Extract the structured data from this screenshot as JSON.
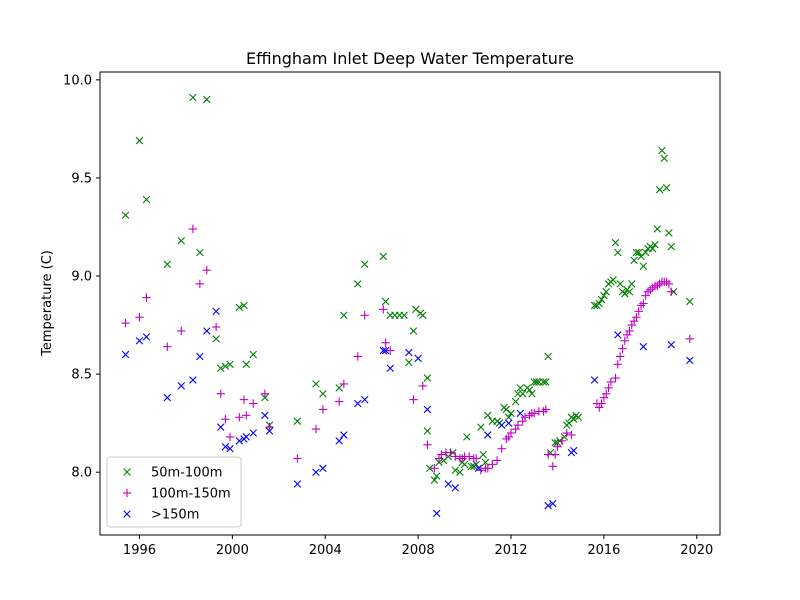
{
  "chart_data": {
    "type": "scatter",
    "title": "Effingham Inlet Deep Water Temperature",
    "xlabel": "",
    "ylabel": "Temperature (C)",
    "xlim": [
      1994.3,
      2021.0
    ],
    "ylim": [
      7.68,
      10.04
    ],
    "x_ticks": [
      1996,
      2000,
      2004,
      2008,
      2012,
      2016,
      2020
    ],
    "y_ticks": [
      8.0,
      8.5,
      9.0,
      9.5,
      10.0
    ],
    "x_tick_labels": [
      "1996",
      "2000",
      "2004",
      "2008",
      "2012",
      "2016",
      "2020"
    ],
    "y_tick_labels": [
      "8.0",
      "8.5",
      "9.0",
      "9.5",
      "10.0"
    ],
    "grid": false,
    "legend_position": "lower-left",
    "series": [
      {
        "name": "50m-100m",
        "marker": "x",
        "color": "#008000",
        "points": [
          [
            1995.4,
            9.31
          ],
          [
            1996.0,
            9.69
          ],
          [
            1996.3,
            9.39
          ],
          [
            1997.2,
            9.06
          ],
          [
            1997.8,
            9.18
          ],
          [
            1998.3,
            9.91
          ],
          [
            1998.6,
            9.12
          ],
          [
            1998.9,
            9.9
          ],
          [
            1999.3,
            8.68
          ],
          [
            1999.5,
            8.53
          ],
          [
            1999.7,
            8.54
          ],
          [
            1999.9,
            8.55
          ],
          [
            2000.3,
            8.84
          ],
          [
            2000.5,
            8.85
          ],
          [
            2000.6,
            8.55
          ],
          [
            2000.9,
            8.6
          ],
          [
            2001.4,
            8.38
          ],
          [
            2001.6,
            8.24
          ],
          [
            2002.8,
            8.26
          ],
          [
            2003.6,
            8.45
          ],
          [
            2003.9,
            8.4
          ],
          [
            2004.6,
            8.43
          ],
          [
            2004.8,
            8.8
          ],
          [
            2005.4,
            8.96
          ],
          [
            2005.7,
            9.06
          ],
          [
            2006.5,
            9.1
          ],
          [
            2006.6,
            8.87
          ],
          [
            2006.8,
            8.8
          ],
          [
            2007.0,
            8.8
          ],
          [
            2007.2,
            8.8
          ],
          [
            2007.4,
            8.8
          ],
          [
            2007.6,
            8.56
          ],
          [
            2007.8,
            8.72
          ],
          [
            2007.9,
            8.83
          ],
          [
            2008.1,
            8.81
          ],
          [
            2008.2,
            8.8
          ],
          [
            2008.4,
            8.48
          ],
          [
            2008.4,
            8.21
          ],
          [
            2008.5,
            8.02
          ],
          [
            2008.7,
            7.96
          ],
          [
            2008.8,
            7.98
          ],
          [
            2008.9,
            8.05
          ],
          [
            2009.1,
            8.06
          ],
          [
            2009.3,
            8.08
          ],
          [
            2009.5,
            8.1
          ],
          [
            2009.6,
            8.01
          ],
          [
            2009.8,
            8.0
          ],
          [
            2009.9,
            8.05
          ],
          [
            2010.0,
            8.04
          ],
          [
            2010.1,
            8.18
          ],
          [
            2010.3,
            8.03
          ],
          [
            2010.4,
            8.03
          ],
          [
            2010.5,
            8.04
          ],
          [
            2010.7,
            8.23
          ],
          [
            2010.8,
            8.09
          ],
          [
            2010.9,
            8.05
          ],
          [
            2011.0,
            8.29
          ],
          [
            2011.2,
            8.26
          ],
          [
            2011.4,
            8.26
          ],
          [
            2011.5,
            8.25
          ],
          [
            2011.7,
            8.33
          ],
          [
            2011.8,
            8.32
          ],
          [
            2011.9,
            8.28
          ],
          [
            2012.0,
            8.3
          ],
          [
            2012.2,
            8.36
          ],
          [
            2012.3,
            8.4
          ],
          [
            2012.4,
            8.43
          ],
          [
            2012.5,
            8.4
          ],
          [
            2012.7,
            8.43
          ],
          [
            2012.8,
            8.42
          ],
          [
            2012.9,
            8.4
          ],
          [
            2013.0,
            8.46
          ],
          [
            2013.1,
            8.46
          ],
          [
            2013.2,
            8.46
          ],
          [
            2013.4,
            8.46
          ],
          [
            2013.5,
            8.46
          ],
          [
            2013.6,
            8.59
          ],
          [
            2013.7,
            8.1
          ],
          [
            2013.9,
            8.15
          ],
          [
            2014.0,
            8.15
          ],
          [
            2014.1,
            8.16
          ],
          [
            2014.3,
            8.18
          ],
          [
            2014.4,
            8.24
          ],
          [
            2014.5,
            8.25
          ],
          [
            2014.6,
            8.28
          ],
          [
            2014.7,
            8.27
          ],
          [
            2014.8,
            8.29
          ],
          [
            2014.9,
            8.28
          ],
          [
            2015.6,
            8.85
          ],
          [
            2015.7,
            8.85
          ],
          [
            2015.8,
            8.86
          ],
          [
            2015.9,
            8.88
          ],
          [
            2016.0,
            8.9
          ],
          [
            2016.1,
            8.92
          ],
          [
            2016.2,
            8.96
          ],
          [
            2016.3,
            8.97
          ],
          [
            2016.4,
            8.98
          ],
          [
            2016.5,
            9.17
          ],
          [
            2016.6,
            9.12
          ],
          [
            2016.7,
            8.96
          ],
          [
            2016.8,
            8.92
          ],
          [
            2016.9,
            8.91
          ],
          [
            2017.0,
            8.93
          ],
          [
            2017.1,
            8.92
          ],
          [
            2017.2,
            8.96
          ],
          [
            2017.3,
            9.08
          ],
          [
            2017.4,
            9.12
          ],
          [
            2017.5,
            9.12
          ],
          [
            2017.6,
            9.1
          ],
          [
            2017.7,
            9.05
          ],
          [
            2017.8,
            9.12
          ],
          [
            2017.9,
            9.14
          ],
          [
            2018.0,
            9.15
          ],
          [
            2018.1,
            9.14
          ],
          [
            2018.2,
            9.16
          ],
          [
            2018.3,
            9.24
          ],
          [
            2018.4,
            9.44
          ],
          [
            2018.5,
            9.64
          ],
          [
            2018.6,
            9.6
          ],
          [
            2018.7,
            9.45
          ],
          [
            2018.8,
            9.22
          ],
          [
            2018.9,
            9.15
          ],
          [
            2019.0,
            8.92
          ],
          [
            2019.7,
            8.87
          ]
        ]
      },
      {
        "name": "100m-150m",
        "marker": "+",
        "color": "#bf00bf",
        "points": [
          [
            1995.4,
            8.76
          ],
          [
            1996.0,
            8.79
          ],
          [
            1996.3,
            8.89
          ],
          [
            1997.2,
            8.64
          ],
          [
            1997.8,
            8.72
          ],
          [
            1998.3,
            9.24
          ],
          [
            1998.6,
            8.96
          ],
          [
            1998.9,
            9.03
          ],
          [
            1999.3,
            8.74
          ],
          [
            1999.5,
            8.4
          ],
          [
            1999.7,
            8.27
          ],
          [
            1999.9,
            8.18
          ],
          [
            2000.3,
            8.28
          ],
          [
            2000.5,
            8.37
          ],
          [
            2000.6,
            8.29
          ],
          [
            2000.9,
            8.35
          ],
          [
            2001.4,
            8.4
          ],
          [
            2001.6,
            8.23
          ],
          [
            2002.8,
            8.07
          ],
          [
            2003.6,
            8.22
          ],
          [
            2003.9,
            8.32
          ],
          [
            2004.6,
            8.36
          ],
          [
            2004.8,
            8.45
          ],
          [
            2005.4,
            8.59
          ],
          [
            2005.7,
            8.8
          ],
          [
            2006.5,
            8.83
          ],
          [
            2006.6,
            8.66
          ],
          [
            2006.8,
            8.62
          ],
          [
            2007.8,
            8.37
          ],
          [
            2008.2,
            8.44
          ],
          [
            2008.4,
            8.14
          ],
          [
            2008.7,
            8.02
          ],
          [
            2008.9,
            8.07
          ],
          [
            2009.0,
            8.09
          ],
          [
            2009.2,
            8.1
          ],
          [
            2009.4,
            8.1
          ],
          [
            2009.6,
            8.08
          ],
          [
            2009.8,
            8.07
          ],
          [
            2009.9,
            8.07
          ],
          [
            2010.0,
            8.08
          ],
          [
            2010.2,
            8.08
          ],
          [
            2010.4,
            8.07
          ],
          [
            2010.5,
            8.07
          ],
          [
            2010.7,
            8.01
          ],
          [
            2010.9,
            8.02
          ],
          [
            2011.0,
            8.02
          ],
          [
            2011.2,
            8.04
          ],
          [
            2011.4,
            8.06
          ],
          [
            2011.6,
            8.12
          ],
          [
            2011.8,
            8.17
          ],
          [
            2011.9,
            8.18
          ],
          [
            2012.0,
            8.2
          ],
          [
            2012.2,
            8.22
          ],
          [
            2012.3,
            8.24
          ],
          [
            2012.5,
            8.26
          ],
          [
            2012.6,
            8.28
          ],
          [
            2012.8,
            8.29
          ],
          [
            2012.9,
            8.3
          ],
          [
            2013.0,
            8.3
          ],
          [
            2013.2,
            8.31
          ],
          [
            2013.4,
            8.31
          ],
          [
            2013.5,
            8.32
          ],
          [
            2013.6,
            8.09
          ],
          [
            2013.8,
            8.03
          ],
          [
            2013.9,
            8.09
          ],
          [
            2014.0,
            8.13
          ],
          [
            2014.2,
            8.16
          ],
          [
            2014.4,
            8.2
          ],
          [
            2014.6,
            8.19
          ],
          [
            2015.7,
            8.35
          ],
          [
            2015.8,
            8.33
          ],
          [
            2015.9,
            8.35
          ],
          [
            2016.0,
            8.38
          ],
          [
            2016.1,
            8.4
          ],
          [
            2016.2,
            8.43
          ],
          [
            2016.3,
            8.46
          ],
          [
            2016.5,
            8.48
          ],
          [
            2016.6,
            8.55
          ],
          [
            2016.7,
            8.59
          ],
          [
            2016.8,
            8.63
          ],
          [
            2016.9,
            8.67
          ],
          [
            2017.0,
            8.7
          ],
          [
            2017.1,
            8.72
          ],
          [
            2017.2,
            8.75
          ],
          [
            2017.3,
            8.77
          ],
          [
            2017.4,
            8.79
          ],
          [
            2017.5,
            8.82
          ],
          [
            2017.6,
            8.85
          ],
          [
            2017.7,
            8.86
          ],
          [
            2017.8,
            8.9
          ],
          [
            2017.9,
            8.92
          ],
          [
            2018.0,
            8.93
          ],
          [
            2018.1,
            8.94
          ],
          [
            2018.2,
            8.95
          ],
          [
            2018.3,
            8.95
          ],
          [
            2018.4,
            8.96
          ],
          [
            2018.5,
            8.97
          ],
          [
            2018.6,
            8.97
          ],
          [
            2018.7,
            8.97
          ],
          [
            2018.8,
            8.96
          ],
          [
            2018.9,
            8.92
          ],
          [
            2019.7,
            8.68
          ]
        ]
      },
      {
        "name": ">150m",
        "marker": "x",
        "color": "#0000ff",
        "points": [
          [
            1995.4,
            8.6
          ],
          [
            1996.0,
            8.67
          ],
          [
            1996.3,
            8.69
          ],
          [
            1997.2,
            8.38
          ],
          [
            1997.8,
            8.44
          ],
          [
            1998.3,
            8.47
          ],
          [
            1998.6,
            8.59
          ],
          [
            1998.9,
            8.72
          ],
          [
            1999.3,
            8.82
          ],
          [
            1999.5,
            8.23
          ],
          [
            1999.7,
            8.13
          ],
          [
            1999.9,
            8.12
          ],
          [
            2000.3,
            8.16
          ],
          [
            2000.5,
            8.17
          ],
          [
            2000.6,
            8.18
          ],
          [
            2000.9,
            8.2
          ],
          [
            2001.4,
            8.29
          ],
          [
            2001.6,
            8.21
          ],
          [
            2002.8,
            7.94
          ],
          [
            2003.6,
            8.0
          ],
          [
            2003.9,
            8.02
          ],
          [
            2004.6,
            8.16
          ],
          [
            2004.8,
            8.19
          ],
          [
            2005.4,
            8.35
          ],
          [
            2005.7,
            8.37
          ],
          [
            2006.5,
            8.62
          ],
          [
            2006.6,
            8.62
          ],
          [
            2006.8,
            8.53
          ],
          [
            2007.6,
            8.61
          ],
          [
            2008.0,
            8.58
          ],
          [
            2008.4,
            8.32
          ],
          [
            2008.8,
            7.79
          ],
          [
            2009.3,
            7.94
          ],
          [
            2009.6,
            7.92
          ],
          [
            2010.6,
            8.02
          ],
          [
            2011.0,
            8.19
          ],
          [
            2011.6,
            8.24
          ],
          [
            2011.9,
            8.25
          ],
          [
            2012.4,
            8.3
          ],
          [
            2013.6,
            7.83
          ],
          [
            2013.8,
            7.84
          ],
          [
            2014.6,
            8.1
          ],
          [
            2014.7,
            8.11
          ],
          [
            2015.6,
            8.47
          ],
          [
            2016.6,
            8.7
          ],
          [
            2017.7,
            8.64
          ],
          [
            2018.9,
            8.65
          ],
          [
            2019.7,
            8.57
          ]
        ]
      }
    ]
  }
}
